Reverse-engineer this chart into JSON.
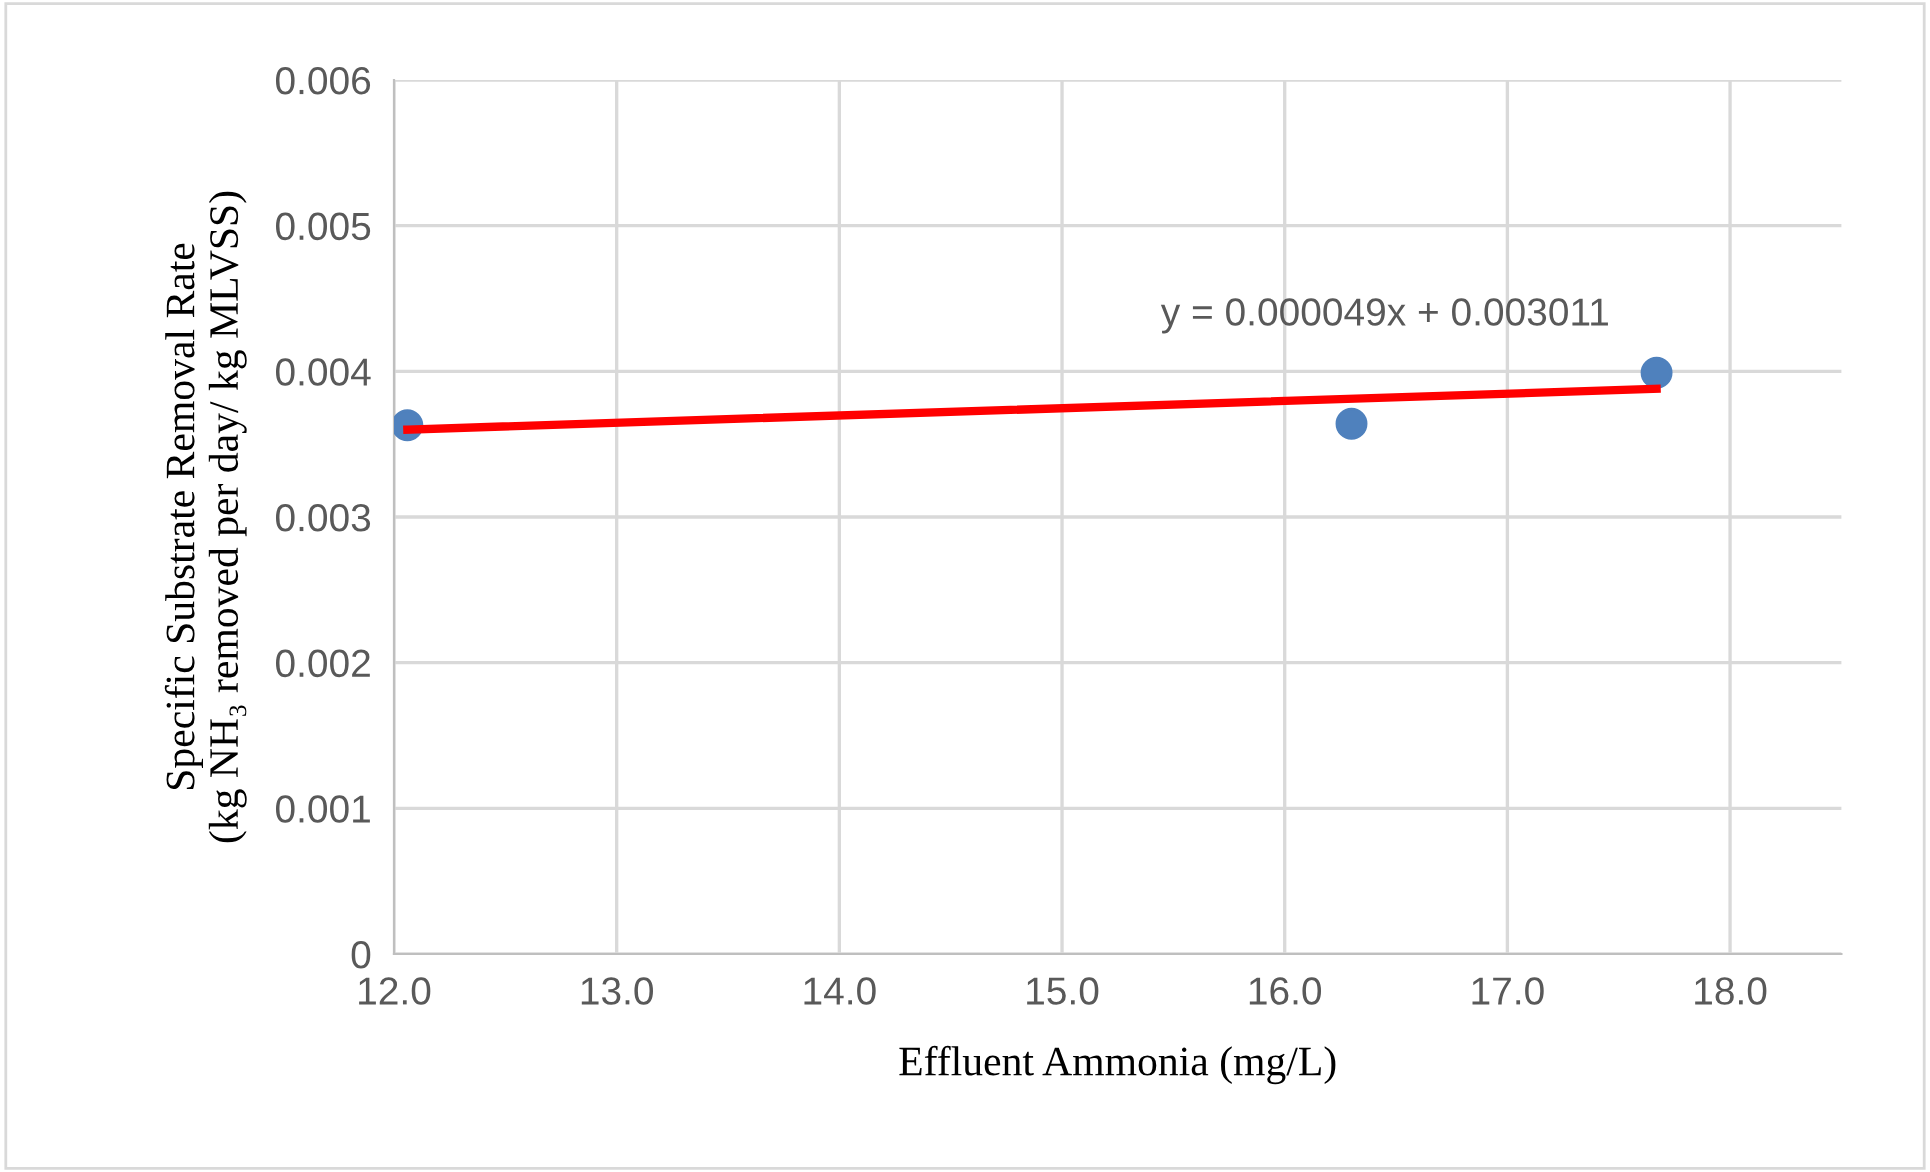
{
  "chart_data": {
    "type": "scatter",
    "xlabel": "Effluent Ammonia (mg/L)",
    "ylabel": "Specific Substrate Removal Rate\n(kg NH₃ removed per day/ kg MLVSS)",
    "series": [
      {
        "color": "#4f81bd",
        "marker": "circle",
        "x": [
          12.06,
          16.3,
          17.67
        ],
        "values": [
          0.00363,
          0.00364,
          0.00399
        ]
      },
      {
        "type": "line",
        "color": "#ff0000",
        "line_style": "solid",
        "x": [
          12.06,
          17.67
        ],
        "values": [
          0.0036,
          0.00388
        ]
      }
    ],
    "annotations": [
      "y = 0.000049x + 0.003011"
    ],
    "xlim": [
      12,
      18.5
    ],
    "xticks": [
      {
        "value": 12,
        "label": "12.0"
      },
      {
        "value": 13,
        "label": "13.0"
      },
      {
        "value": 14,
        "label": "14.0"
      },
      {
        "value": 15,
        "label": "15.0"
      },
      {
        "value": 16,
        "label": "16.0"
      },
      {
        "value": 17,
        "label": "17.0"
      },
      {
        "value": 18,
        "label": "18.0"
      }
    ],
    "ylim": [
      0,
      0.006
    ],
    "yticks": [
      0,
      0.001,
      0.002,
      0.003,
      0.004,
      0.005,
      0.006
    ],
    "grid": true,
    "legend": false
  }
}
